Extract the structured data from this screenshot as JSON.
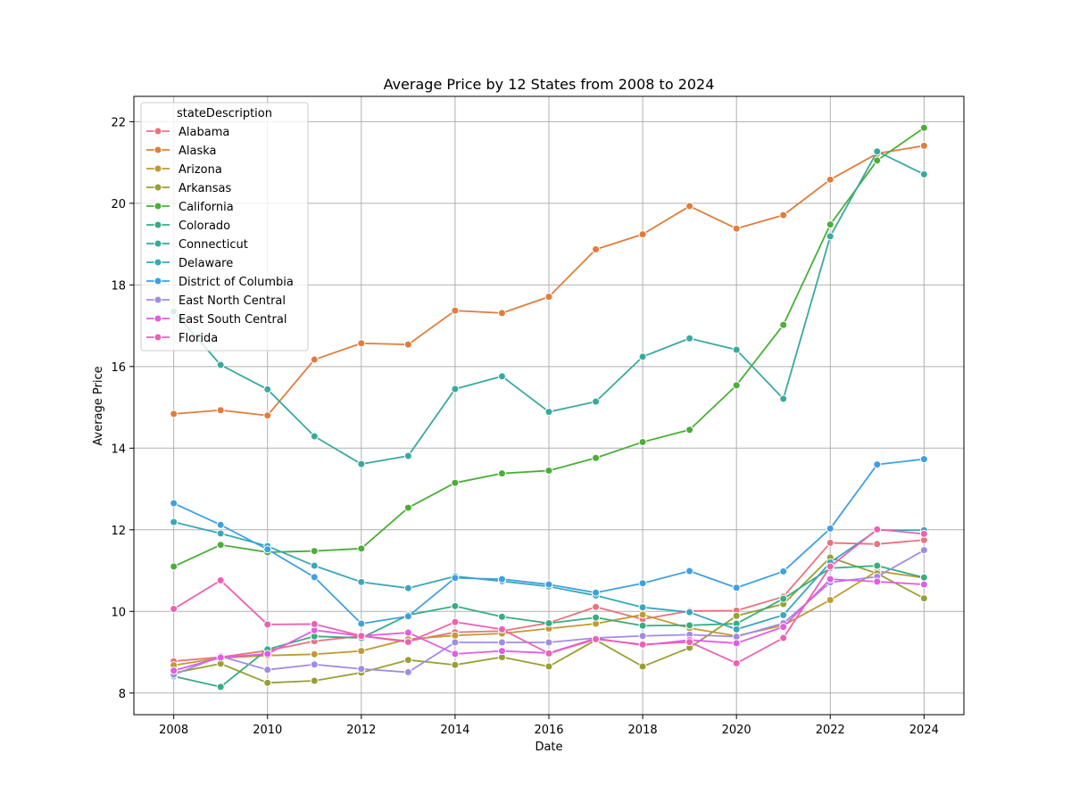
{
  "chart_data": {
    "type": "line",
    "title": "Average Price by 12 States from 2008 to 2024",
    "xlabel": "Date",
    "ylabel": "Average Price",
    "xlim": [
      2007.15,
      2024.85
    ],
    "ylim": [
      7.47,
      22.62
    ],
    "xticks": [
      2008,
      2010,
      2012,
      2014,
      2016,
      2018,
      2020,
      2022,
      2024
    ],
    "yticks": [
      8,
      10,
      12,
      14,
      16,
      18,
      20,
      22
    ],
    "grid": true,
    "legend": {
      "title": "stateDescription",
      "placement": "upper-left"
    },
    "x": [
      2008,
      2009,
      2010,
      2011,
      2012,
      2013,
      2014,
      2015,
      2016,
      2017,
      2018,
      2019,
      2020,
      2021,
      2022,
      2023,
      2024
    ],
    "series": [
      {
        "name": "Alabama",
        "color": "#e8737f",
        "values": [
          8.78,
          8.88,
          9.04,
          9.27,
          9.4,
          9.27,
          9.49,
          9.52,
          9.72,
          10.11,
          9.81,
          10.01,
          10.02,
          10.36,
          11.68,
          11.65,
          11.75
        ]
      },
      {
        "name": "Alaska",
        "color": "#e07d3b",
        "values": [
          14.84,
          14.93,
          14.8,
          16.17,
          16.57,
          16.54,
          17.37,
          17.31,
          17.71,
          18.87,
          19.24,
          19.93,
          19.38,
          19.71,
          20.58,
          21.22,
          21.41
        ]
      },
      {
        "name": "Arizona",
        "color": "#c29a32",
        "values": [
          8.68,
          8.86,
          8.92,
          8.95,
          9.03,
          9.32,
          9.41,
          9.46,
          9.58,
          9.7,
          9.92,
          9.59,
          9.4,
          9.66,
          10.28,
          10.99,
          10.82
        ]
      },
      {
        "name": "Arkansas",
        "color": "#9a9f33",
        "values": [
          8.49,
          8.72,
          8.25,
          8.3,
          8.5,
          8.81,
          8.69,
          8.88,
          8.65,
          9.3,
          8.65,
          9.11,
          9.89,
          10.18,
          11.32,
          10.93,
          10.32
        ]
      },
      {
        "name": "California",
        "color": "#4aae37",
        "values": [
          11.1,
          11.63,
          11.45,
          11.48,
          11.54,
          12.54,
          13.15,
          13.38,
          13.45,
          13.76,
          14.15,
          14.45,
          15.54,
          17.02,
          19.48,
          21.05,
          21.85
        ]
      },
      {
        "name": "Colorado",
        "color": "#36ad82",
        "values": [
          8.41,
          8.15,
          9.07,
          9.39,
          9.35,
          9.91,
          10.13,
          9.87,
          9.71,
          9.85,
          9.65,
          9.66,
          9.7,
          10.31,
          11.06,
          11.12,
          10.83
        ]
      },
      {
        "name": "Connecticut",
        "color": "#37aa9e",
        "values": [
          17.35,
          16.04,
          15.44,
          14.29,
          13.61,
          13.81,
          15.45,
          15.76,
          14.89,
          15.14,
          16.24,
          16.69,
          16.41,
          15.21,
          19.19,
          21.27,
          20.71
        ]
      },
      {
        "name": "Delaware",
        "color": "#3aa7b9",
        "values": [
          12.19,
          11.91,
          11.6,
          11.12,
          10.72,
          10.57,
          10.86,
          10.74,
          10.61,
          10.39,
          10.1,
          9.98,
          9.56,
          9.91,
          11.2,
          11.99,
          11.99
        ]
      },
      {
        "name": "District of Columbia",
        "color": "#3ea0e3",
        "values": [
          12.65,
          12.12,
          11.52,
          10.84,
          9.7,
          9.88,
          10.82,
          10.79,
          10.66,
          10.46,
          10.69,
          10.99,
          10.58,
          10.98,
          12.03,
          13.6,
          13.73
        ]
      },
      {
        "name": "East North Central",
        "color": "#a08ce4",
        "values": [
          8.45,
          8.9,
          8.57,
          8.7,
          8.59,
          8.51,
          9.24,
          9.24,
          9.24,
          9.35,
          9.4,
          9.43,
          9.38,
          9.71,
          10.71,
          10.85,
          11.5
        ]
      },
      {
        "name": "East South Central",
        "color": "#e25ce6",
        "values": [
          8.55,
          8.87,
          8.96,
          9.54,
          9.4,
          9.48,
          8.96,
          9.03,
          8.98,
          9.34,
          9.17,
          9.3,
          9.22,
          9.62,
          10.79,
          10.73,
          10.66
        ]
      },
      {
        "name": "Florida",
        "color": "#ed60b4",
        "values": [
          10.06,
          10.76,
          9.68,
          9.69,
          9.4,
          9.25,
          9.74,
          9.56,
          8.97,
          9.32,
          9.19,
          9.25,
          8.73,
          9.35,
          11.1,
          12.01,
          11.9
        ]
      }
    ]
  }
}
